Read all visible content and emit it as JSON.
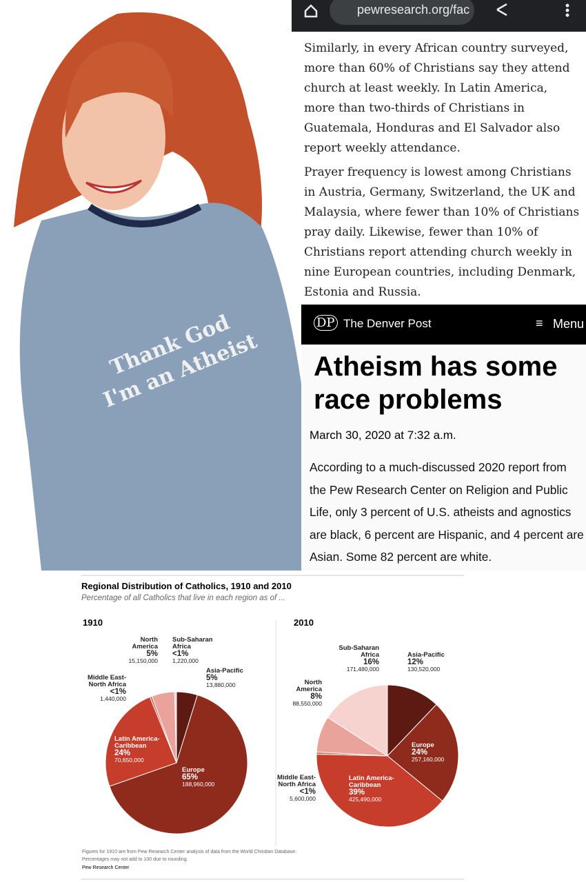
{
  "photo": {
    "shirt_text": [
      "Thank God",
      "I'm an Atheist"
    ]
  },
  "browser": {
    "url": "pewresearch.org/fac"
  },
  "pew_text": {
    "paragraphs": [
      "Similarly, in every African country surveyed, more than 60% of Christians say they attend church at least weekly. In Latin America, more than two-thirds of Christians in Guatemala, Honduras and El Salvador also report weekly attendance.",
      "Prayer frequency is lowest among Christians in Austria, Germany, Switzerland, the UK and Malaysia, where fewer than 10% of Christians pray daily. Likewise, fewer than 10% of Christians report attending church weekly in nine European countries, including Denmark, Estonia and Russia."
    ]
  },
  "denver_post": {
    "logo": "DP",
    "site": "The Denver Post",
    "menu": "Menu",
    "title": "Atheism has some race problems",
    "date": "March 30, 2020 at 7:32 a.m.",
    "body": "According to a much-discussed 2020 report from the Pew Research Center on Religion and Public Life, only 3 percent of U.S. atheists and agnostics are black, 6 percent are Hispanic, and 4 percent are Asian. Some 82 percent are white."
  },
  "pew_chart": {
    "title": "Regional Distribution of Catholics, 1910 and 2010",
    "subtitle": "Percentage of all Catholics that live in each region as of ...",
    "pies": [
      {
        "year": "1910",
        "slices": [
          {
            "name_lines": [
              "Asia-Pacific"
            ],
            "percent": "5%",
            "count": "13,880,000",
            "value": 13880000,
            "color": "#5c1a12"
          },
          {
            "name_lines": [
              "Europe"
            ],
            "percent": "65%",
            "count": "188,960,000",
            "value": 188960000,
            "color": "#8e2b1d"
          },
          {
            "name_lines": [
              "Latin America-",
              "Caribbean"
            ],
            "percent": "24%",
            "count": "70,650,000",
            "value": 70650000,
            "color": "#c63d2c"
          },
          {
            "name_lines": [
              "Middle East-",
              "North Africa"
            ],
            "percent": "<1%",
            "count": "1,440,000",
            "value": 1440000,
            "color": "#e06b5a"
          },
          {
            "name_lines": [
              "North",
              "America"
            ],
            "percent": "5%",
            "count": "15,150,000",
            "value": 15150000,
            "color": "#e9a39b"
          },
          {
            "name_lines": [
              "Sub-Saharan",
              "Africa"
            ],
            "percent": "<1%",
            "count": "1,220,000",
            "value": 1220000,
            "color": "#f6d3cf"
          }
        ]
      },
      {
        "year": "2010",
        "slices": [
          {
            "name_lines": [
              "Asia-Pacific"
            ],
            "percent": "12%",
            "count": "130,520,000",
            "value": 130520000,
            "color": "#5c1a12"
          },
          {
            "name_lines": [
              "Europe"
            ],
            "percent": "24%",
            "count": "257,160,000",
            "value": 257160000,
            "color": "#8e2b1d"
          },
          {
            "name_lines": [
              "Latin America-",
              "Caribbean"
            ],
            "percent": "39%",
            "count": "425,490,000",
            "value": 425490000,
            "color": "#c63d2c"
          },
          {
            "name_lines": [
              "Middle East-",
              "North Africa"
            ],
            "percent": "<1%",
            "count": "5,600,000",
            "value": 5600000,
            "color": "#e06b5a"
          },
          {
            "name_lines": [
              "North",
              "America"
            ],
            "percent": "8%",
            "count": "88,550,000",
            "value": 88550000,
            "color": "#e9a39b"
          },
          {
            "name_lines": [
              "Sub-Saharan",
              "Africa"
            ],
            "percent": "16%",
            "count": "171,480,000",
            "value": 171480000,
            "color": "#f6d3cf"
          }
        ]
      }
    ],
    "notes": [
      "Figures for 1910 are from Pew Research Center analysis of data from the World Christian Database.",
      "Percentages may not add to 100 due to rounding."
    ],
    "source": "Pew Research Center"
  }
}
